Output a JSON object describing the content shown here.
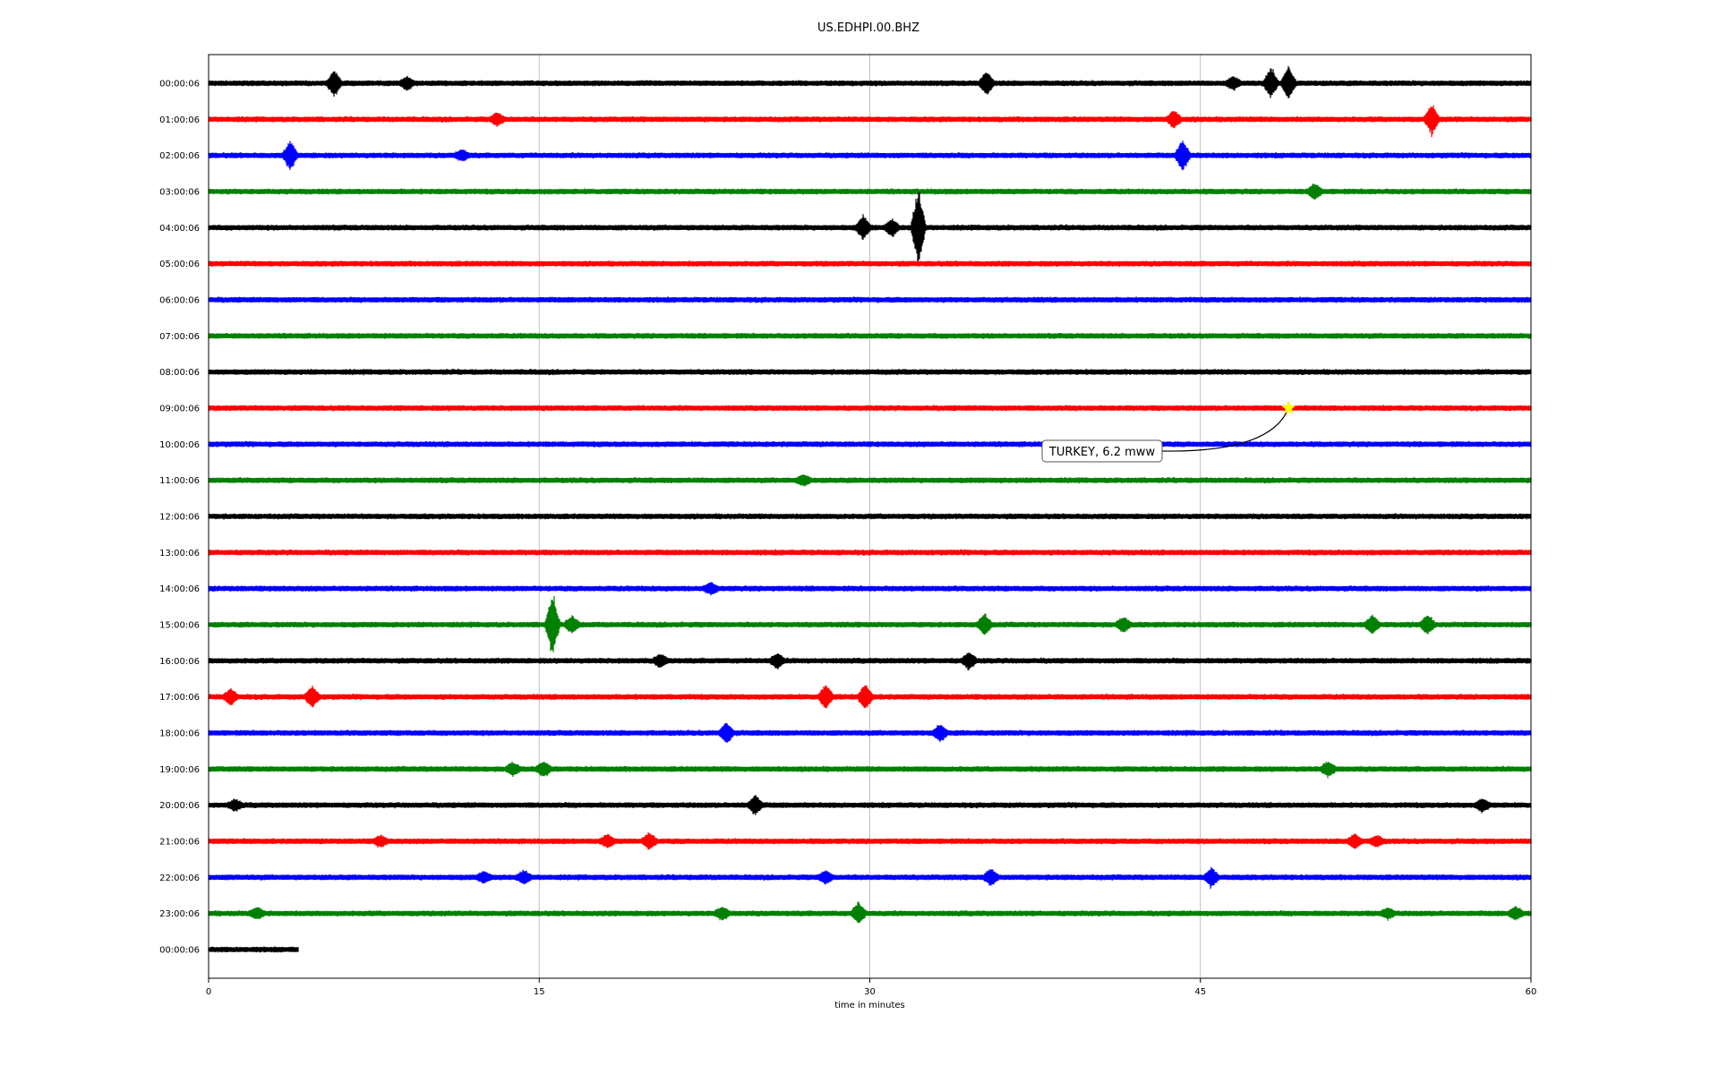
{
  "chart_data": {
    "type": "line",
    "title": "US.EDHPI.00.BHZ",
    "xlabel": "time in minutes",
    "ylabel": "",
    "xlim": [
      0,
      60
    ],
    "x_ticks": [
      0,
      15,
      30,
      45,
      60
    ],
    "grid": "vertical at 15, 30, 45",
    "trace_colors": [
      "#000000",
      "#ff0000",
      "#0000ff",
      "#008000"
    ],
    "rows": [
      {
        "label": "00:00:06",
        "end_min": 60,
        "events": [
          {
            "t": 5.7,
            "amp": 1.1
          },
          {
            "t": 9.0,
            "amp": 0.5
          },
          {
            "t": 35.3,
            "amp": 1.0
          },
          {
            "t": 46.5,
            "amp": 0.5
          },
          {
            "t": 48.2,
            "amp": 1.3
          },
          {
            "t": 49.0,
            "amp": 1.5
          }
        ]
      },
      {
        "label": "01:00:06",
        "end_min": 60,
        "events": [
          {
            "t": 13.1,
            "amp": 0.5
          },
          {
            "t": 43.8,
            "amp": 0.7
          },
          {
            "t": 55.5,
            "amp": 1.3
          }
        ]
      },
      {
        "label": "02:00:06",
        "end_min": 60,
        "events": [
          {
            "t": 3.7,
            "amp": 1.2
          },
          {
            "t": 11.5,
            "amp": 0.4
          },
          {
            "t": 44.2,
            "amp": 1.4
          }
        ]
      },
      {
        "label": "03:00:06",
        "end_min": 60,
        "events": [
          {
            "t": 50.2,
            "amp": 0.6
          }
        ]
      },
      {
        "label": "04:00:06",
        "end_min": 60,
        "events": [
          {
            "t": 29.7,
            "amp": 1.0
          },
          {
            "t": 31.0,
            "amp": 0.7
          },
          {
            "t": 32.2,
            "amp": 3.6
          }
        ]
      },
      {
        "label": "05:00:06",
        "end_min": 60,
        "events": []
      },
      {
        "label": "06:00:06",
        "end_min": 60,
        "events": []
      },
      {
        "label": "07:00:06",
        "end_min": 60,
        "events": []
      },
      {
        "label": "08:00:06",
        "end_min": 60,
        "events": []
      },
      {
        "label": "09:00:06",
        "end_min": 60,
        "events": []
      },
      {
        "label": "10:00:06",
        "end_min": 60,
        "events": []
      },
      {
        "label": "11:00:06",
        "end_min": 60,
        "events": [
          {
            "t": 27.0,
            "amp": 0.4
          }
        ]
      },
      {
        "label": "12:00:06",
        "end_min": 60,
        "events": []
      },
      {
        "label": "13:00:06",
        "end_min": 60,
        "events": []
      },
      {
        "label": "14:00:06",
        "end_min": 60,
        "events": [
          {
            "t": 22.8,
            "amp": 0.4
          }
        ]
      },
      {
        "label": "15:00:06",
        "end_min": 60,
        "events": [
          {
            "t": 15.6,
            "amp": 2.8
          },
          {
            "t": 16.5,
            "amp": 0.7
          },
          {
            "t": 35.2,
            "amp": 0.9
          },
          {
            "t": 41.5,
            "amp": 0.6
          },
          {
            "t": 52.8,
            "amp": 0.8
          },
          {
            "t": 55.3,
            "amp": 0.8
          }
        ]
      },
      {
        "label": "16:00:06",
        "end_min": 60,
        "events": [
          {
            "t": 20.5,
            "amp": 0.5
          },
          {
            "t": 25.8,
            "amp": 0.6
          },
          {
            "t": 34.5,
            "amp": 0.7
          }
        ]
      },
      {
        "label": "17:00:06",
        "end_min": 60,
        "events": [
          {
            "t": 1.0,
            "amp": 0.6
          },
          {
            "t": 4.7,
            "amp": 0.9
          },
          {
            "t": 28.0,
            "amp": 1.0
          },
          {
            "t": 29.8,
            "amp": 1.1
          }
        ]
      },
      {
        "label": "18:00:06",
        "end_min": 60,
        "events": [
          {
            "t": 23.5,
            "amp": 0.9
          },
          {
            "t": 33.2,
            "amp": 0.7
          }
        ]
      },
      {
        "label": "19:00:06",
        "end_min": 60,
        "events": [
          {
            "t": 13.8,
            "amp": 0.5
          },
          {
            "t": 15.2,
            "amp": 0.6
          },
          {
            "t": 50.8,
            "amp": 0.6
          }
        ]
      },
      {
        "label": "20:00:06",
        "end_min": 60,
        "events": [
          {
            "t": 1.2,
            "amp": 0.4
          },
          {
            "t": 24.8,
            "amp": 0.8
          },
          {
            "t": 57.8,
            "amp": 0.5
          }
        ]
      },
      {
        "label": "21:00:06",
        "end_min": 60,
        "events": [
          {
            "t": 7.8,
            "amp": 0.4
          },
          {
            "t": 18.1,
            "amp": 0.5
          },
          {
            "t": 20.0,
            "amp": 0.7
          },
          {
            "t": 52.0,
            "amp": 0.6
          },
          {
            "t": 53.0,
            "amp": 0.4
          }
        ]
      },
      {
        "label": "22:00:06",
        "end_min": 60,
        "events": [
          {
            "t": 12.5,
            "amp": 0.4
          },
          {
            "t": 14.3,
            "amp": 0.5
          },
          {
            "t": 28.0,
            "amp": 0.5
          },
          {
            "t": 35.5,
            "amp": 0.7
          },
          {
            "t": 45.5,
            "amp": 0.8
          }
        ]
      },
      {
        "label": "23:00:06",
        "end_min": 60,
        "events": [
          {
            "t": 2.2,
            "amp": 0.4
          },
          {
            "t": 23.3,
            "amp": 0.5
          },
          {
            "t": 29.5,
            "amp": 0.9
          },
          {
            "t": 53.5,
            "amp": 0.4
          },
          {
            "t": 59.3,
            "amp": 0.5
          }
        ]
      },
      {
        "label": "00:00:06",
        "end_min": 4.1,
        "events": []
      }
    ],
    "annotations": [
      {
        "text": "TURKEY, 6.2 mww",
        "event_t": 49.0,
        "event_row": 9,
        "marker": "star",
        "marker_color": "#ffff00"
      }
    ]
  }
}
